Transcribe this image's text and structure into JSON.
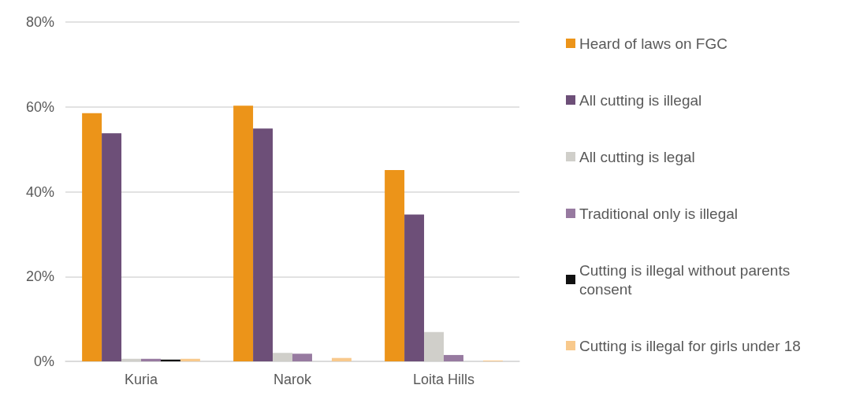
{
  "chart_data": {
    "type": "bar",
    "categories": [
      "Kuria",
      "Narok",
      "Loita Hills"
    ],
    "series": [
      {
        "name": "Heard of laws on FGC",
        "color": "#ec9419",
        "values": [
          58.5,
          60.3,
          45.1
        ]
      },
      {
        "name": "All cutting is illegal",
        "color": "#6d4f78",
        "values": [
          53.8,
          54.9,
          34.6
        ]
      },
      {
        "name": "All cutting is legal",
        "color": "#d0cfca",
        "values": [
          0.6,
          2.0,
          6.9
        ]
      },
      {
        "name": "Traditional only is illegal",
        "color": "#977aa0",
        "values": [
          0.6,
          1.8,
          1.5
        ]
      },
      {
        "name": "Cutting is illegal without parents consent",
        "color": "#111111",
        "values": [
          0.4,
          0,
          0
        ]
      },
      {
        "name": "Cutting is illegal for girls under 18",
        "color": "#f8c98c",
        "values": [
          0.6,
          0.8,
          0.2
        ]
      }
    ],
    "ylim": [
      0,
      80
    ],
    "yticks": [
      {
        "value": 0,
        "label": "0%"
      },
      {
        "value": 20,
        "label": "20%"
      },
      {
        "value": 40,
        "label": "40%"
      },
      {
        "value": 60,
        "label": "60%"
      },
      {
        "value": 80,
        "label": "80%"
      }
    ],
    "grid": "y",
    "legend": "right"
  }
}
